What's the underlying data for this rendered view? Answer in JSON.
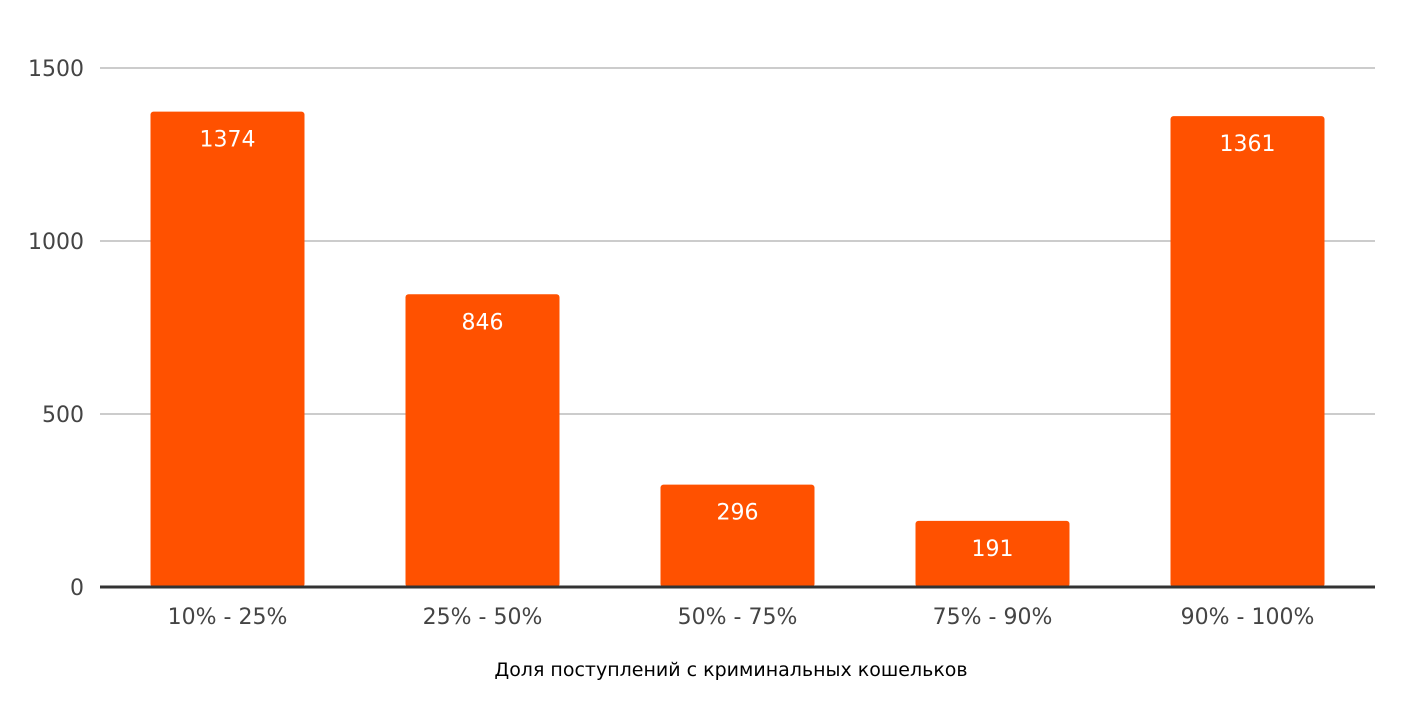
{
  "chart_data": {
    "type": "bar",
    "categories": [
      "10% - 25%",
      "25% - 50%",
      "50% - 75%",
      "75% - 90%",
      "90% - 100%"
    ],
    "values": [
      1374,
      846,
      296,
      191,
      1361
    ],
    "data_labels": [
      "1374",
      "846",
      "296",
      "191",
      "1361"
    ],
    "title": "",
    "xlabel": "Доля поступлений с криминальных кошельков",
    "ylabel": "",
    "ylim": [
      0,
      1500
    ],
    "yticks": [
      0,
      500,
      1000,
      1500
    ],
    "ytick_labels": [
      "0",
      "500",
      "1000",
      "1500"
    ],
    "grid": true,
    "legend": "none",
    "colors": {
      "bar": "#ff5100",
      "grid": "#cccccc",
      "baseline": "#333333",
      "tick_text": "#444444",
      "label_text": "#ffffff"
    }
  }
}
